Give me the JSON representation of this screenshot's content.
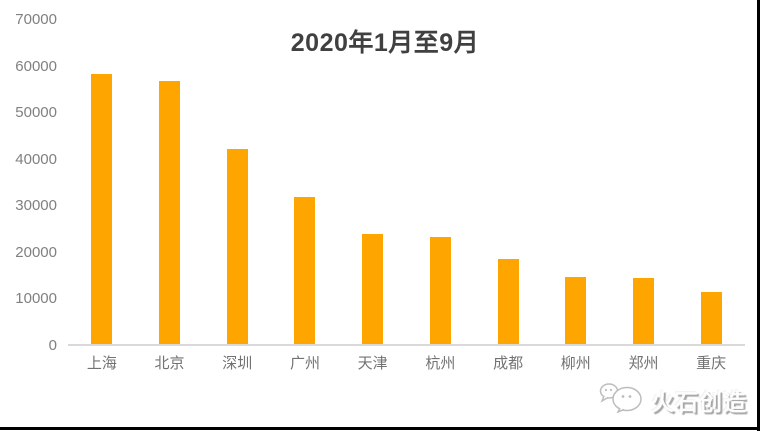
{
  "chart_data": {
    "type": "bar",
    "title": "2020年1月至9月",
    "categories": [
      "上海",
      "北京",
      "深圳",
      "广州",
      "天津",
      "杭州",
      "成都",
      "柳州",
      "郑州",
      "重庆"
    ],
    "values": [
      58500,
      57000,
      42200,
      32100,
      24000,
      23400,
      18600,
      14800,
      14500,
      11700
    ],
    "xlabel": "",
    "ylabel": "",
    "ylim": [
      0,
      70000
    ],
    "yticks": [
      0,
      10000,
      20000,
      30000,
      40000,
      50000,
      60000,
      70000
    ],
    "grid": false,
    "legend": false,
    "bar_color": "#FFA500"
  },
  "watermark": {
    "text": "火石创造",
    "logo": "speech-bubbles-logo"
  },
  "colors": {
    "bar": "#FFA500",
    "title_text": "#404040",
    "ytick_text": "#808080",
    "category_text": "#737373",
    "axis_line": "#d9d9d9",
    "frame_border": "#000000",
    "background": "#ffffff"
  }
}
